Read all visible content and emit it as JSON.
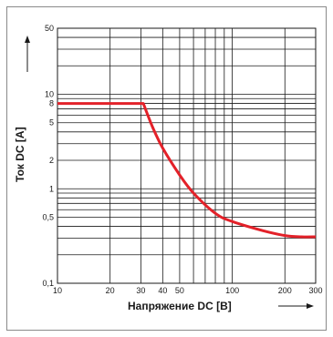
{
  "chart_data": {
    "type": "line",
    "xlabel": "Напряжение DC [В]",
    "ylabel": "Ток DC [А]",
    "x_scale": "log",
    "y_scale": "log",
    "xlim": [
      10,
      300
    ],
    "ylim": [
      0.1,
      50
    ],
    "x_tick_labels": [
      "10",
      "20",
      "30",
      "40",
      "50",
      "100",
      "200",
      "300"
    ],
    "y_tick_labels": [
      "0,1",
      "0,5",
      "1",
      "2",
      "5",
      "8",
      "10",
      "50"
    ],
    "grid": true,
    "series": [
      {
        "color": "#e32129",
        "x": [
          10,
          31,
          35,
          40,
          50,
          60,
          80,
          100,
          150,
          200,
          250,
          300
        ],
        "y": [
          8,
          8,
          4.5,
          2.7,
          1.4,
          0.9,
          0.55,
          0.45,
          0.36,
          0.32,
          0.31,
          0.31
        ]
      }
    ]
  }
}
